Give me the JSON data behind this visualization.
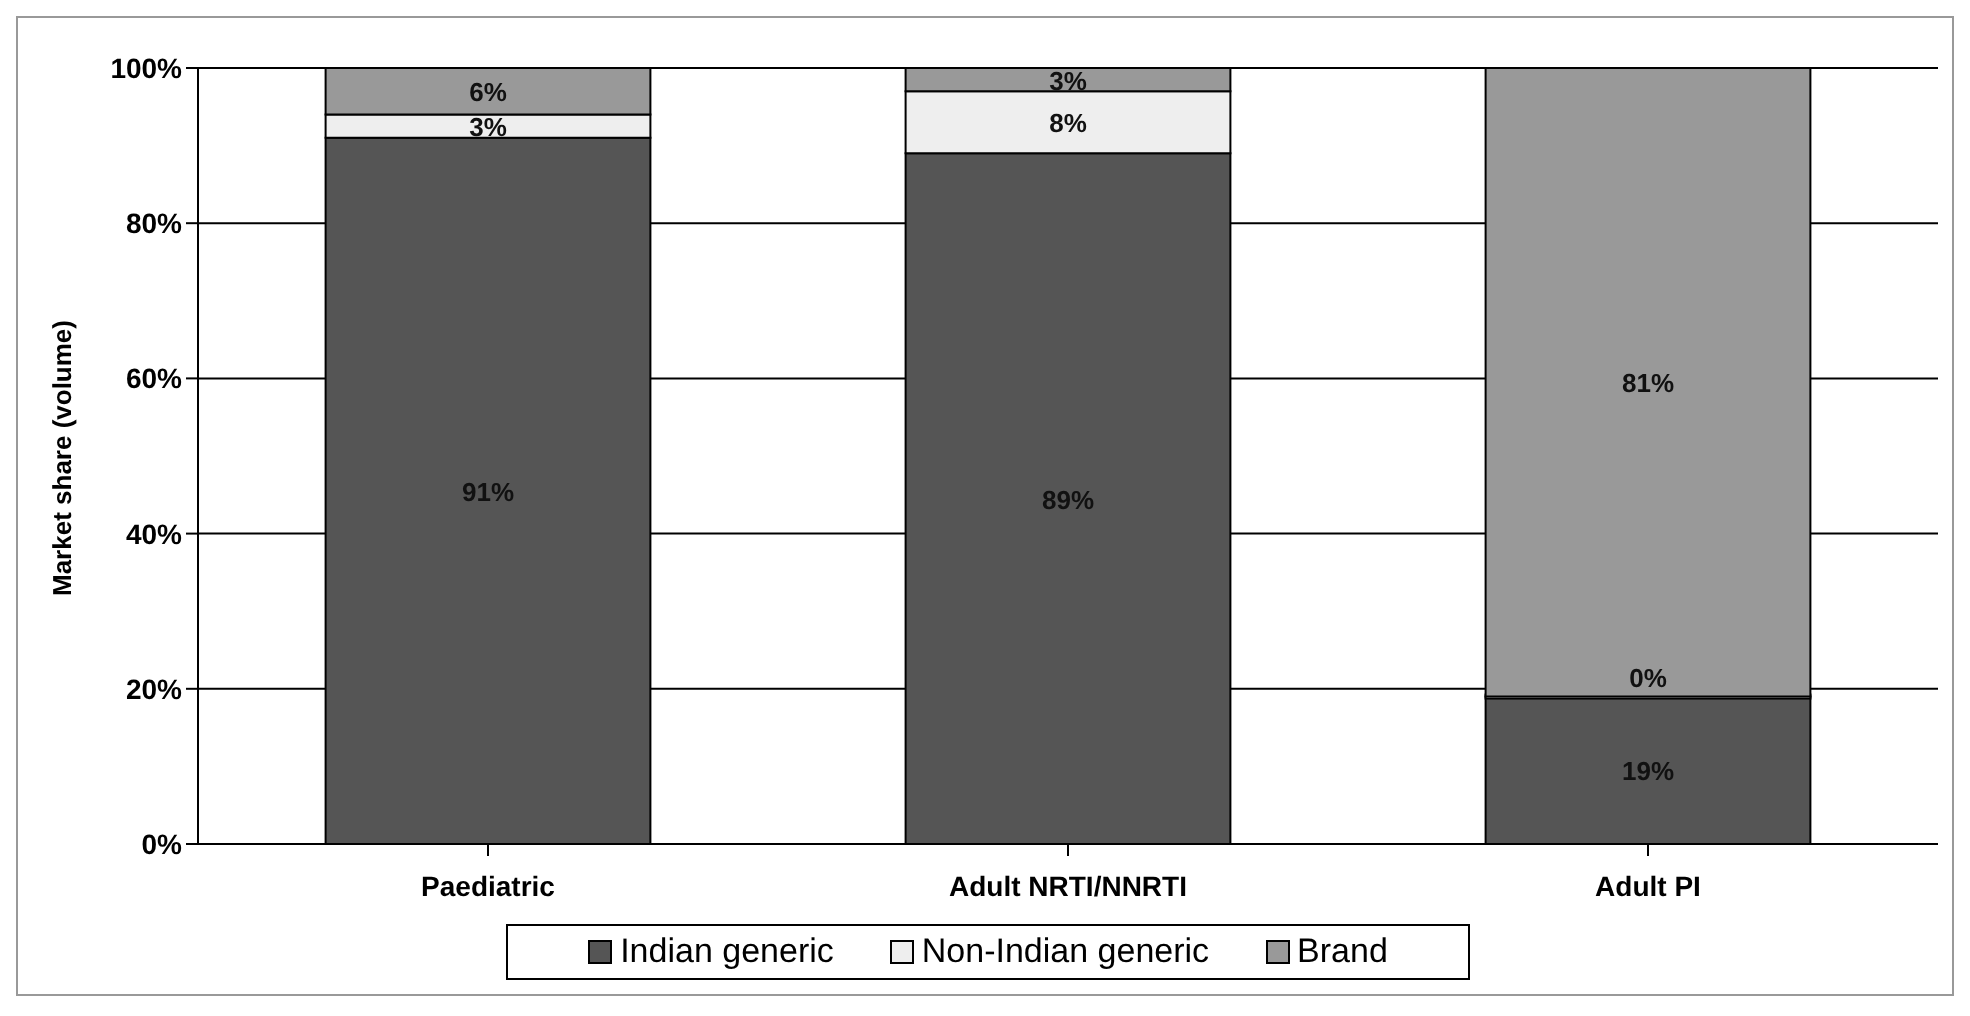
{
  "chart_data": {
    "type": "bar",
    "stacked": true,
    "ylabel": "Market share (volume)",
    "categories": [
      "Paediatric",
      "Adult NRTI/NNRTI",
      "Adult PI"
    ],
    "series": [
      {
        "name": "Indian generic",
        "color": "#555555",
        "values": [
          91,
          89,
          19
        ],
        "value_labels": [
          "91%",
          "89%",
          "19%"
        ]
      },
      {
        "name": "Non-Indian generic",
        "color": "#eeeeee",
        "values": [
          3,
          8,
          0
        ],
        "value_labels": [
          "3%",
          "8%",
          "0%"
        ]
      },
      {
        "name": "Brand",
        "color": "#999999",
        "values": [
          6,
          3,
          81
        ],
        "value_labels": [
          "6%",
          "3%",
          "81%"
        ]
      }
    ],
    "ylim": [
      0,
      100
    ],
    "yticks": [
      {
        "value": 0,
        "label": "0%"
      },
      {
        "value": 20,
        "label": "20%"
      },
      {
        "value": 40,
        "label": "40%"
      },
      {
        "value": 60,
        "label": "60%"
      },
      {
        "value": 80,
        "label": "80%"
      },
      {
        "value": 100,
        "label": "100%"
      }
    ],
    "grid": "y",
    "legend": "bottom"
  }
}
